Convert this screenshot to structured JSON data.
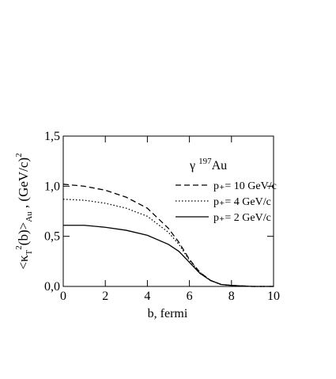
{
  "chart_data": {
    "type": "line",
    "y_label": [
      "<κ",
      "T",
      "2",
      "(b)>",
      "Au",
      " , (GeV/c)",
      "2"
    ],
    "x_label": "b, fermi",
    "annotation": [
      "γ",
      "197",
      "Au"
    ],
    "x": [
      0,
      1,
      2,
      3,
      4,
      5,
      5.5,
      6,
      6.5,
      7,
      7.5,
      8,
      9,
      10
    ],
    "series": [
      {
        "name": "p₊= 10 GeV/c",
        "color": "#000000",
        "dash": "7,4",
        "values": [
          1.02,
          1.0,
          0.96,
          0.89,
          0.78,
          0.58,
          0.44,
          0.27,
          0.14,
          0.06,
          0.02,
          0.01,
          0,
          0
        ]
      },
      {
        "name": "p₊= 4 GeV/c",
        "color": "#000000",
        "dash": "1.5,2.5",
        "values": [
          0.87,
          0.86,
          0.83,
          0.78,
          0.7,
          0.54,
          0.42,
          0.26,
          0.14,
          0.06,
          0.02,
          0.01,
          0,
          0
        ]
      },
      {
        "name": "p₊= 2 GeV/c",
        "color": "#000000",
        "dash": "none",
        "values": [
          0.61,
          0.61,
          0.59,
          0.56,
          0.51,
          0.42,
          0.35,
          0.24,
          0.13,
          0.06,
          0.02,
          0.01,
          0,
          0
        ]
      }
    ],
    "xlim": [
      0,
      10
    ],
    "ylim": [
      0,
      1.5
    ],
    "xticks": [
      0,
      2,
      4,
      6,
      8,
      10
    ],
    "yticks": [
      {
        "value": 0,
        "label": "0,0"
      },
      {
        "value": 0.5,
        "label": "0,5"
      },
      {
        "value": 1.0,
        "label": "1,0"
      },
      {
        "value": 1.5,
        "label": "1,5"
      }
    ]
  }
}
